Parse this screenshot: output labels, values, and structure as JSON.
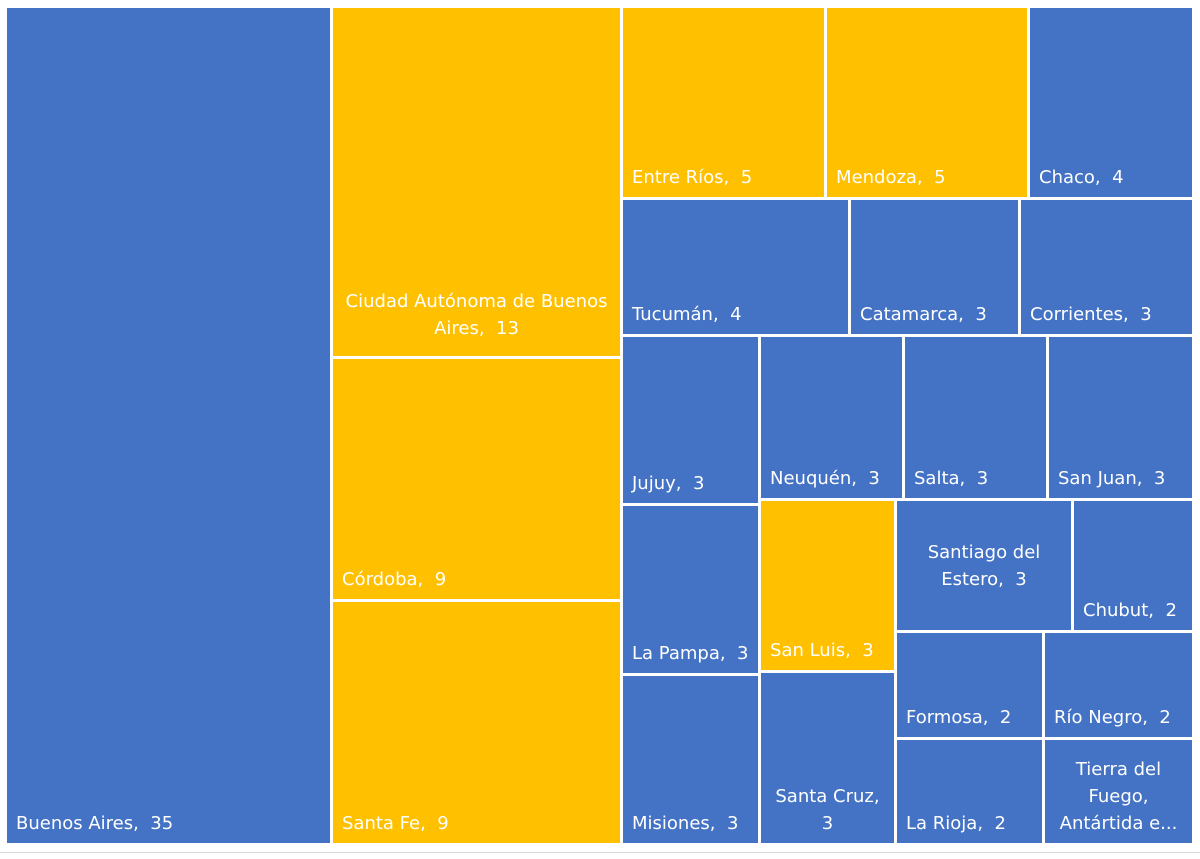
{
  "chart_data": {
    "type": "treemap",
    "colors": {
      "blue": "#4472C4",
      "gold": "#FFC000",
      "border": "#ffffff",
      "text": "#ffffff"
    },
    "items": [
      {
        "name": "Buenos Aires",
        "value": 35,
        "label": "Buenos Aires,  35",
        "color": "blue"
      },
      {
        "name": "Ciudad Autónoma de Buenos Aires",
        "value": 13,
        "label": "Ciudad Autónoma de Buenos Aires,  13",
        "color": "gold"
      },
      {
        "name": "Córdoba",
        "value": 9,
        "label": "Córdoba,  9",
        "color": "gold"
      },
      {
        "name": "Santa Fe",
        "value": 9,
        "label": "Santa Fe,  9",
        "color": "gold"
      },
      {
        "name": "Entre Ríos",
        "value": 5,
        "label": "Entre Ríos,  5",
        "color": "gold"
      },
      {
        "name": "Mendoza",
        "value": 5,
        "label": "Mendoza,  5",
        "color": "gold"
      },
      {
        "name": "Chaco",
        "value": 4,
        "label": "Chaco,  4",
        "color": "blue"
      },
      {
        "name": "Tucumán",
        "value": 4,
        "label": "Tucumán,  4",
        "color": "blue"
      },
      {
        "name": "Catamarca",
        "value": 3,
        "label": "Catamarca,  3",
        "color": "blue"
      },
      {
        "name": "Corrientes",
        "value": 3,
        "label": "Corrientes,  3",
        "color": "blue"
      },
      {
        "name": "Jujuy",
        "value": 3,
        "label": "Jujuy,  3",
        "color": "blue"
      },
      {
        "name": "Neuquén",
        "value": 3,
        "label": "Neuquén,  3",
        "color": "blue"
      },
      {
        "name": "Salta",
        "value": 3,
        "label": "Salta,  3",
        "color": "blue"
      },
      {
        "name": "San Juan",
        "value": 3,
        "label": "San Juan,  3",
        "color": "blue"
      },
      {
        "name": "La Pampa",
        "value": 3,
        "label": "La Pampa,  3",
        "color": "blue"
      },
      {
        "name": "San Luis",
        "value": 3,
        "label": "San Luis,  3",
        "color": "gold"
      },
      {
        "name": "Santiago del Estero",
        "value": 3,
        "label": "Santiago del Estero,  3",
        "color": "blue"
      },
      {
        "name": "Chubut",
        "value": 2,
        "label": "Chubut,  2",
        "color": "blue"
      },
      {
        "name": "Misiones",
        "value": 3,
        "label": "Misiones,  3",
        "color": "blue"
      },
      {
        "name": "Santa Cruz",
        "value": 3,
        "label": "Santa Cruz,  3",
        "color": "blue"
      },
      {
        "name": "Formosa",
        "value": 2,
        "label": "Formosa,  2",
        "color": "blue"
      },
      {
        "name": "Río Negro",
        "value": 2,
        "label": "Río Negro,  2",
        "color": "blue"
      },
      {
        "name": "La Rioja",
        "value": 2,
        "label": "La Rioja,  2",
        "color": "blue"
      },
      {
        "name": "Tierra del Fuego, Antártida e...",
        "value": 2,
        "label": "Tierra del Fuego, Antártida e...",
        "color": "blue"
      }
    ]
  }
}
